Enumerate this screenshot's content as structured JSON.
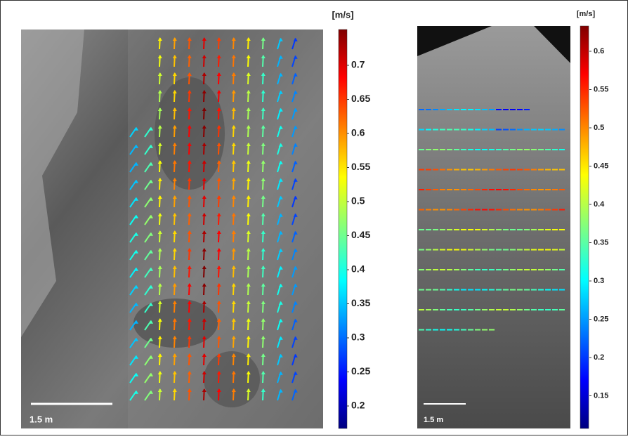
{
  "panels": [
    {
      "colorbar": {
        "unit": "[m/s]",
        "ticks": [
          0.7,
          0.65,
          0.6,
          0.55,
          0.5,
          0.45,
          0.4,
          0.35,
          0.3,
          0.25,
          0.2
        ]
      },
      "scale_bar": "1.5 m"
    },
    {
      "colorbar": {
        "unit": "[m/s]",
        "ticks": [
          0.6,
          0.55,
          0.5,
          0.45,
          0.4,
          0.35,
          0.3,
          0.25,
          0.2,
          0.15
        ]
      },
      "scale_bar": "1.5 m"
    }
  ]
}
